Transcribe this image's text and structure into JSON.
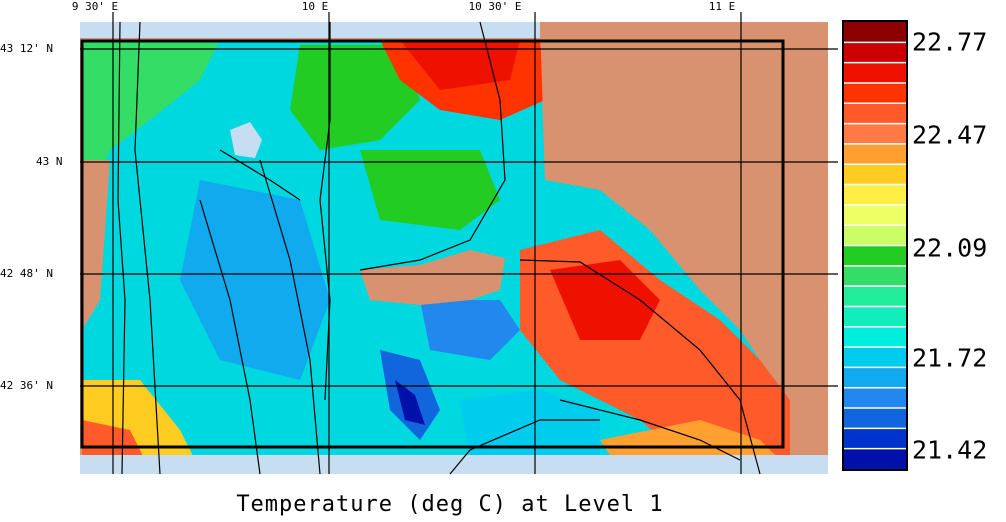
{
  "map": {
    "lon_labels": [
      "9 30' E",
      "10 E",
      "10 30' E",
      "11 E"
    ],
    "lat_labels": [
      "43 12' N",
      "43 N",
      "42 48' N",
      "42 36' N"
    ],
    "caption": "Temperature (deg C) at Level 1"
  },
  "colorbar": {
    "labels": [
      "22.77",
      "22.47",
      "22.09",
      "21.72",
      "21.42"
    ],
    "colors": [
      "#8b0000",
      "#cc0000",
      "#ee1100",
      "#ff3300",
      "#ff5a2a",
      "#ff7a45",
      "#ffa030",
      "#ffcc22",
      "#ffee44",
      "#eeff66",
      "#ccff66",
      "#22cc22",
      "#33dd66",
      "#22ee99",
      "#11eebb",
      "#00eedd",
      "#00ccee",
      "#11aaee",
      "#2288ee",
      "#1166dd",
      "#0033cc",
      "#0011aa"
    ]
  },
  "palette": {
    "land": "#d99270",
    "shallow_water": "#c7def2",
    "frame": "#000000"
  }
}
